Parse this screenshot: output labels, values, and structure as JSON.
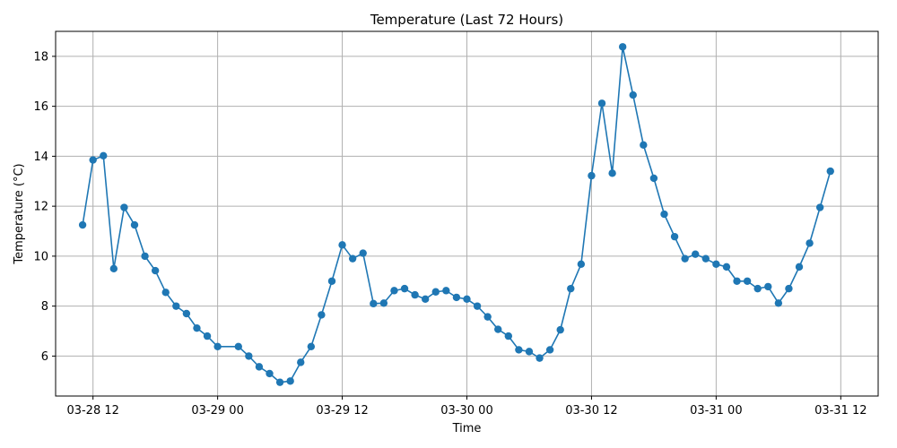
{
  "chart_data": {
    "type": "line",
    "title": "Temperature (Last 72 Hours)",
    "xlabel": "Time",
    "ylabel": "Temperature (°C)",
    "xlim": [
      "03-28 08:24",
      "03-31 15:36"
    ],
    "ylim": [
      4.4,
      19.0
    ],
    "grid": true,
    "x_ticks": [
      {
        "value": "03-28 12:00",
        "label": "03-28 12"
      },
      {
        "value": "03-29 00:00",
        "label": "03-29 00"
      },
      {
        "value": "03-29 12:00",
        "label": "03-29 12"
      },
      {
        "value": "03-30 00:00",
        "label": "03-30 00"
      },
      {
        "value": "03-30 12:00",
        "label": "03-30 12"
      },
      {
        "value": "03-31 00:00",
        "label": "03-31 00"
      },
      {
        "value": "03-31 12:00",
        "label": "03-31 12"
      }
    ],
    "y_ticks": [
      6,
      8,
      10,
      12,
      14,
      16,
      18
    ],
    "series": [
      {
        "color": "#1f77b4",
        "marker": "circle",
        "x": [
          "03-28 11:00",
          "03-28 12:00",
          "03-28 13:00",
          "03-28 14:00",
          "03-28 15:00",
          "03-28 16:00",
          "03-28 17:00",
          "03-28 18:00",
          "03-28 19:00",
          "03-28 20:00",
          "03-28 21:00",
          "03-28 22:00",
          "03-28 23:00",
          "03-29 00:00",
          "03-29 02:00",
          "03-29 03:00",
          "03-29 04:00",
          "03-29 05:00",
          "03-29 06:00",
          "03-29 07:00",
          "03-29 08:00",
          "03-29 09:00",
          "03-29 10:00",
          "03-29 11:00",
          "03-29 12:00",
          "03-29 13:00",
          "03-29 14:00",
          "03-29 15:00",
          "03-29 16:00",
          "03-29 17:00",
          "03-29 18:00",
          "03-29 19:00",
          "03-29 20:00",
          "03-29 21:00",
          "03-29 22:00",
          "03-29 23:00",
          "03-30 00:00",
          "03-30 01:00",
          "03-30 02:00",
          "03-30 03:00",
          "03-30 04:00",
          "03-30 05:00",
          "03-30 06:00",
          "03-30 07:00",
          "03-30 08:00",
          "03-30 09:00",
          "03-30 10:00",
          "03-30 11:00",
          "03-30 12:00",
          "03-30 13:00",
          "03-30 14:00",
          "03-30 15:00",
          "03-30 16:00",
          "03-30 17:00",
          "03-30 18:00",
          "03-30 19:00",
          "03-30 20:00",
          "03-30 21:00",
          "03-30 22:00",
          "03-30 23:00",
          "03-31 00:00",
          "03-31 01:00",
          "03-31 02:00",
          "03-31 03:00",
          "03-31 04:00",
          "03-31 05:00",
          "03-31 06:00",
          "03-31 07:00",
          "03-31 08:00",
          "03-31 09:00",
          "03-31 10:00",
          "03-31 11:00",
          "03-31 12:00"
        ],
        "y": [
          11.25,
          13.85,
          14.02,
          9.5,
          11.95,
          11.25,
          10.0,
          9.42,
          8.55,
          8.0,
          7.7,
          7.12,
          6.8,
          6.38,
          6.38,
          6.0,
          5.57,
          5.3,
          4.95,
          5.0,
          5.75,
          6.38,
          7.65,
          9.0,
          10.45,
          9.9,
          10.12,
          8.1,
          8.12,
          8.62,
          8.7,
          8.45,
          8.28,
          8.57,
          8.62,
          8.35,
          8.28,
          8.0,
          7.57,
          7.07,
          6.8,
          6.25,
          6.18,
          5.92,
          6.25,
          7.05,
          8.7,
          9.68,
          13.22,
          16.12,
          13.32,
          18.38,
          16.45,
          14.45,
          13.12,
          11.68,
          10.78,
          9.9,
          10.08,
          9.9,
          9.68,
          9.57,
          9.0,
          9.0,
          8.7,
          8.78,
          8.12,
          8.7,
          9.57,
          10.52,
          11.95,
          13.4,
          null
        ]
      }
    ]
  }
}
